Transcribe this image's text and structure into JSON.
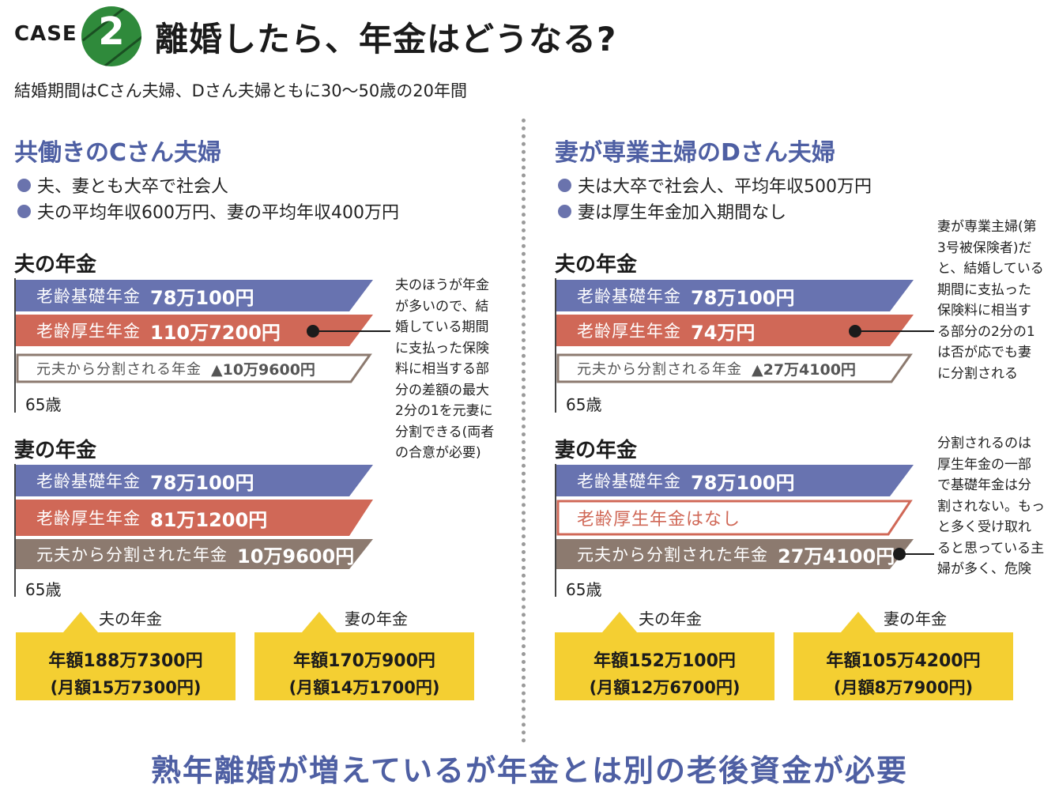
{
  "header": {
    "case_label": "CASE",
    "case_number": "2",
    "title": "離婚したら、年金はどうなる?",
    "subtitle": "結婚期間はCさん夫婦、Dさん夫婦ともに30〜50歳の20年間"
  },
  "left": {
    "title": "共働きのCさん夫婦",
    "bullets": [
      "夫、妻とも大卒で社会人",
      "夫の平均年収600万円、妻の平均年収400万円"
    ],
    "husband": {
      "title": "夫の年金",
      "basic_label": "老齢基礎年金",
      "basic_amount": "78万100円",
      "employee_label": "老齢厚生年金",
      "employee_amount": "110万7200円",
      "split_label": "元夫から分割される年金",
      "split_amount": "▲10万9600円",
      "age": "65歳"
    },
    "wife": {
      "title": "妻の年金",
      "basic_label": "老齢基礎年金",
      "basic_amount": "78万100円",
      "employee_label": "老齢厚生年金",
      "employee_amount": "81万1200円",
      "split_label": "元夫から分割された年金",
      "split_amount": "10万9600円",
      "age": "65歳"
    },
    "note": "夫のほうが年金\nが多いので、結\n婚している期間\nに支払った保険\n料に相当する部\n分の差額の最大\n2分の1を元妻に\n分割できる(両者\nの合意が必要)",
    "summary": [
      {
        "label": "夫の年金",
        "annual": "年額188万7300円",
        "monthly": "(月額15万7300円)"
      },
      {
        "label": "妻の年金",
        "annual": "年額170万900円",
        "monthly": "(月額14万1700円)"
      }
    ]
  },
  "right": {
    "title": "妻が専業主婦のDさん夫婦",
    "bullets": [
      "夫は大卒で社会人、平均年収500万円",
      "妻は厚生年金加入期間なし"
    ],
    "husband": {
      "title": "夫の年金",
      "basic_label": "老齢基礎年金",
      "basic_amount": "78万100円",
      "employee_label": "老齢厚生年金",
      "employee_amount": "74万円",
      "split_label": "元夫から分割される年金",
      "split_amount": "▲27万4100円",
      "age": "65歳"
    },
    "wife": {
      "title": "妻の年金",
      "basic_label": "老齢基礎年金",
      "basic_amount": "78万100円",
      "employee_none": "老齢厚生年金はなし",
      "split_label": "元夫から分割された年金",
      "split_amount": "27万4100円",
      "age": "65歳"
    },
    "note1": "妻が専業主婦(第\n3号被保険者)だ\nと、結婚している\n期間に支払った\n保険料に相当す\nる部分の2分の1\nは否が応でも妻\nに分割される",
    "note2": "分割されるのは\n厚生年金の一部\nで基礎年金は分\n割されない。もっ\nと多く受け取れ\nると思っている主\n婦が多く、危険",
    "summary": [
      {
        "label": "夫の年金",
        "annual": "年額152万100円",
        "monthly": "(月額12万6700円)"
      },
      {
        "label": "妻の年金",
        "annual": "年額105万4200円",
        "monthly": "(月額8万7900円)"
      }
    ]
  },
  "footer": "熟年離婚が増えているが年金とは別の老後資金が必要",
  "colors": {
    "blue": "#6873b0",
    "red": "#d06857",
    "brown": "#8c7a6f",
    "yellow": "#f4cf32",
    "title_blue": "#4e5fa3",
    "badge_green": "#2f8a3b"
  }
}
